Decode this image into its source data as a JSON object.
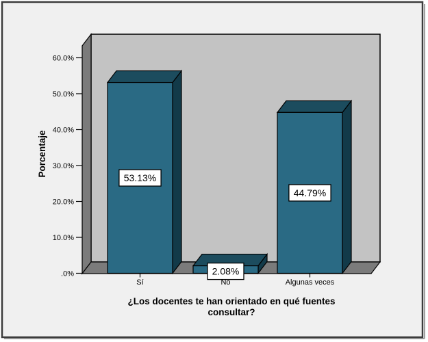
{
  "figure": {
    "background": "#F0F0F0",
    "border_color": "#3C3C3C",
    "shadow_color": "#A0A0A0"
  },
  "chart_data": {
    "type": "bar",
    "style": "3d-column",
    "title": "",
    "xlabel": "¿Los docentes te han orientado en qué fuentes consultar?",
    "xlabel_lines": [
      "¿Los docentes te han orientado en qué fuentes",
      "consultar?"
    ],
    "ylabel": "Porcentaje",
    "categories": [
      "Sí",
      "No",
      "Algunas veces"
    ],
    "values": [
      53.13,
      2.08,
      44.79
    ],
    "value_labels": [
      "53.13%",
      "2.08%",
      "44.79%"
    ],
    "ylim": [
      0,
      60
    ],
    "ytick_values": [
      0,
      10,
      20,
      30,
      40,
      50,
      60
    ],
    "ytick_labels": [
      ".0%",
      "10.0%",
      "20.0%",
      "30.0%",
      "40.0%",
      "50.0%",
      "60.0%"
    ],
    "grid": false,
    "legend": false,
    "colors": {
      "bar_front": "#2A6A84",
      "bar_top": "#1C4C5E",
      "bar_side": "#123A49",
      "wall": "#C3C3C3",
      "panel": "#7B7B7B",
      "outline": "#000000",
      "label_box_fill": "#FFFFFF",
      "label_box_border": "#000000"
    }
  }
}
